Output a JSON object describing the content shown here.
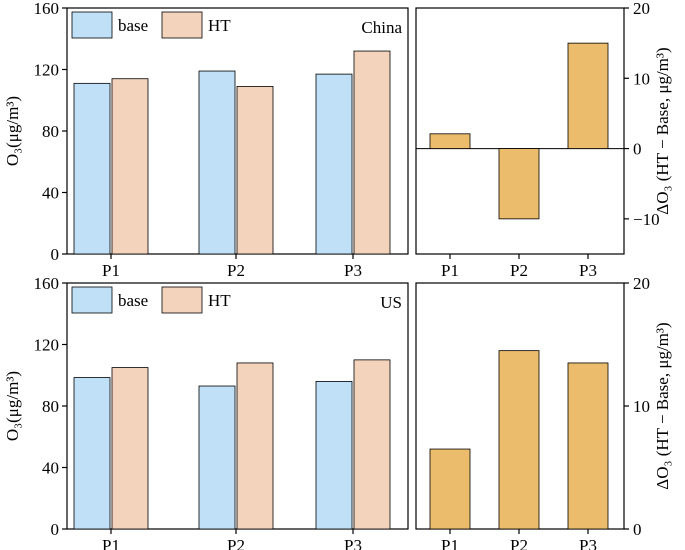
{
  "chart_data": [
    {
      "id": "china-abs",
      "type": "bar",
      "region_label": "China",
      "categories": [
        "P1",
        "P2",
        "P3"
      ],
      "series": [
        {
          "name": "base",
          "values": [
            111,
            119,
            117
          ],
          "color": "#bfe0f7"
        },
        {
          "name": "HT",
          "values": [
            114,
            109,
            132
          ],
          "color": "#f4d3bd"
        }
      ],
      "ylabel": "O₃(μg/m³)",
      "ylim": [
        0,
        160
      ],
      "yticks": [
        0,
        40,
        80,
        120,
        160
      ],
      "ytick_labels": [
        "0",
        "40",
        "80",
        "120",
        "160"
      ],
      "legend_position": "top-left"
    },
    {
      "id": "china-diff",
      "type": "bar",
      "categories": [
        "P1",
        "P2",
        "P3"
      ],
      "series": [
        {
          "name": "ΔO₃",
          "values": [
            2.1,
            -10,
            15
          ],
          "color": "#ebbc6b"
        }
      ],
      "ylabel": "ΔO₃ (HT − Base, μg/m³)",
      "ylim": [
        -15,
        20
      ],
      "yticks": [
        -10,
        0,
        10,
        20
      ],
      "ytick_labels": [
        "−10",
        "0",
        "10",
        "20"
      ]
    },
    {
      "id": "us-abs",
      "type": "bar",
      "region_label": "US",
      "categories": [
        "P1",
        "P2",
        "P3"
      ],
      "series": [
        {
          "name": "base",
          "values": [
            98.5,
            93,
            96
          ],
          "color": "#bfe0f7"
        },
        {
          "name": "HT",
          "values": [
            105,
            108,
            110
          ],
          "color": "#f4d3bd"
        }
      ],
      "ylabel": "O₃(μg/m³)",
      "ylim": [
        0,
        160
      ],
      "yticks": [
        0,
        40,
        80,
        120,
        160
      ],
      "ytick_labels": [
        "0",
        "40",
        "80",
        "120",
        "160"
      ],
      "legend_position": "top-left"
    },
    {
      "id": "us-diff",
      "type": "bar",
      "categories": [
        "P1",
        "P2",
        "P3"
      ],
      "series": [
        {
          "name": "ΔO₃",
          "values": [
            6.5,
            14.5,
            13.5
          ],
          "color": "#ebbc6b"
        }
      ],
      "ylabel": "ΔO₃ (HT − Base, μg/m³)",
      "ylim": [
        0,
        20
      ],
      "yticks": [
        0,
        10,
        20
      ],
      "ytick_labels": [
        "0",
        "10",
        "20"
      ]
    }
  ]
}
